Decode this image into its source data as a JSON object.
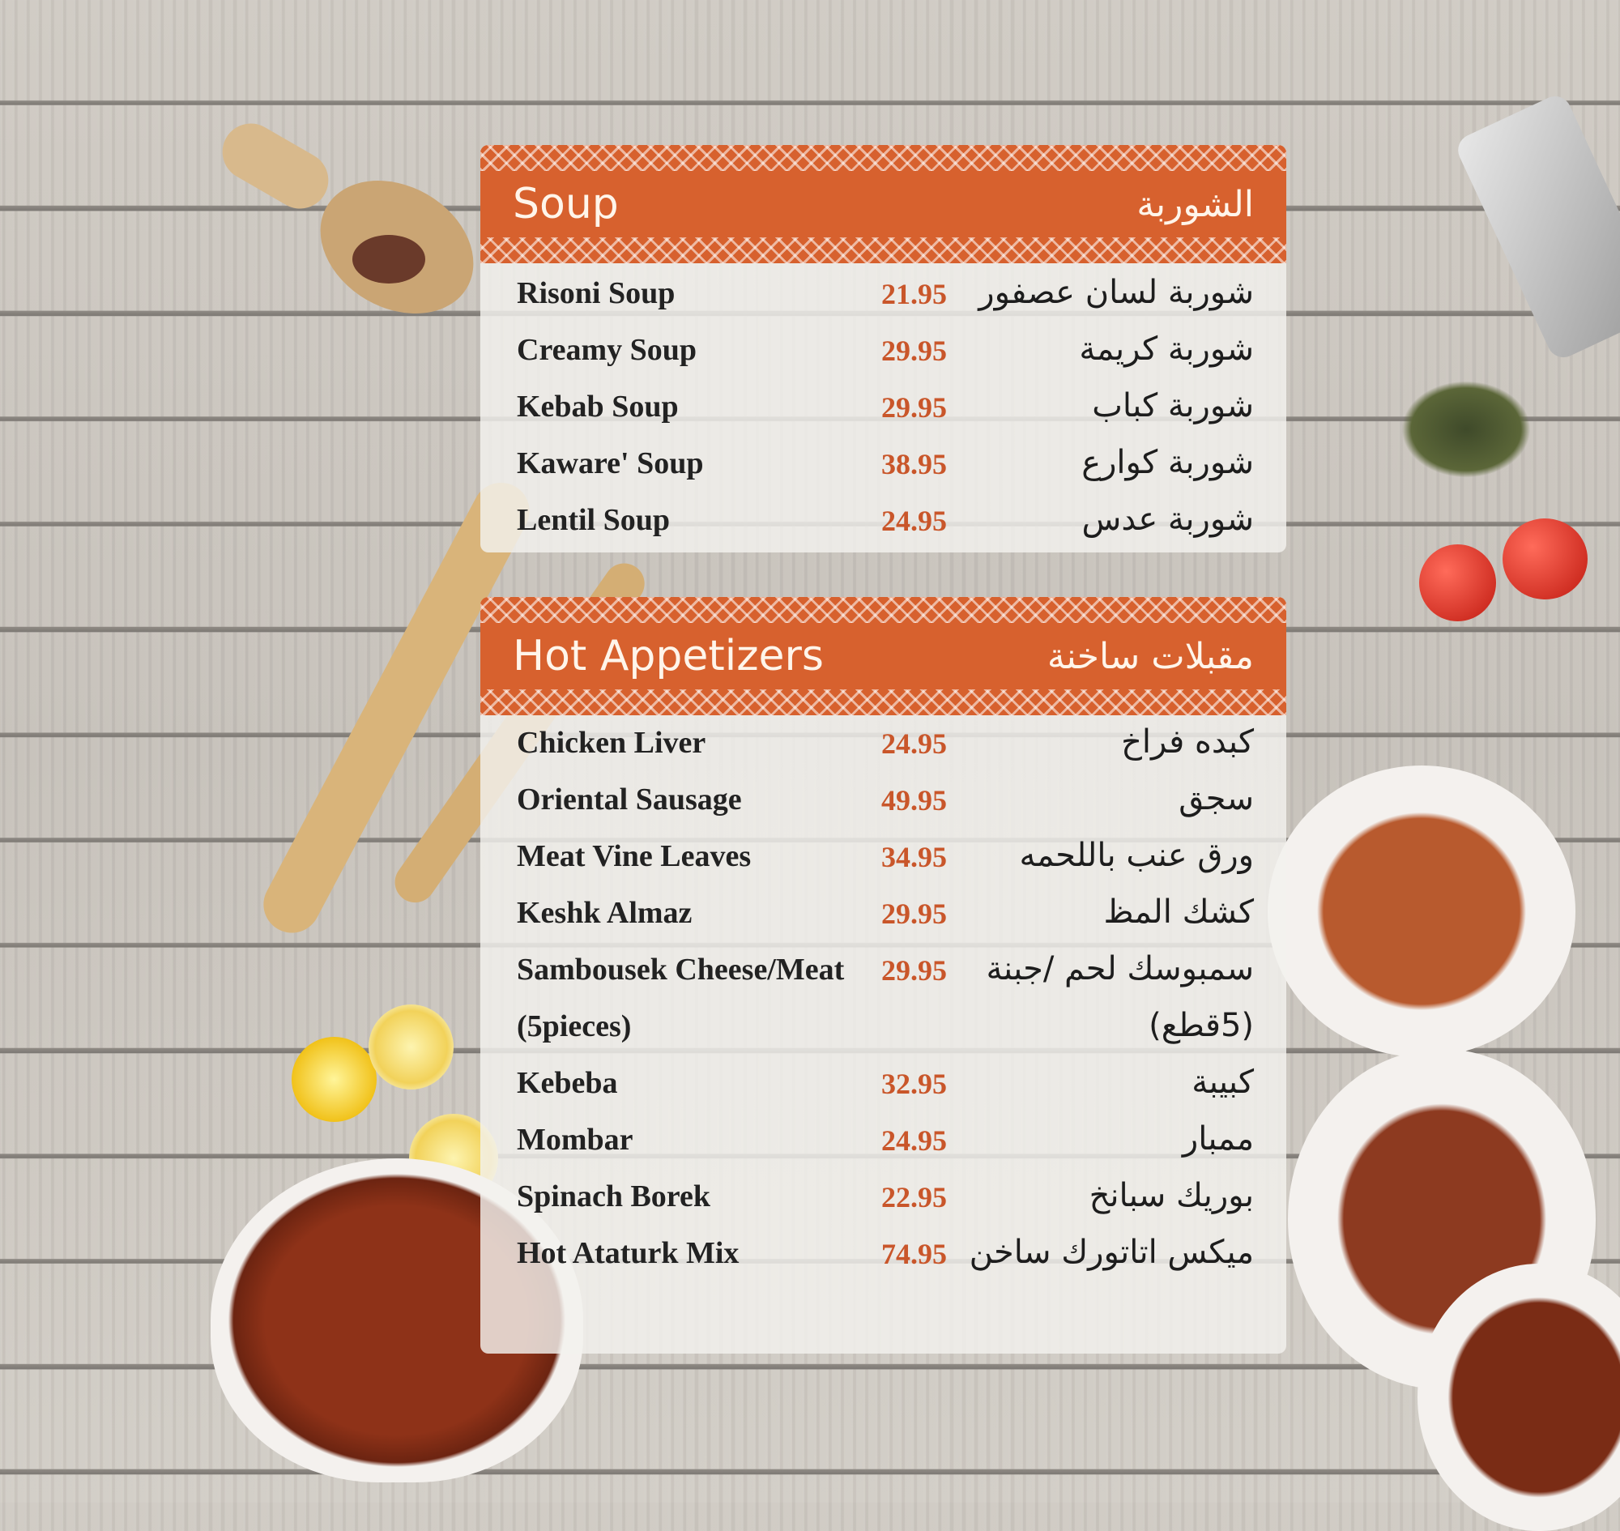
{
  "colors": {
    "accent": "#d7612e",
    "price": "#c9562a"
  },
  "sections": [
    {
      "title_en": "Soup",
      "title_ar": "الشوربة",
      "items": [
        {
          "en": "Risoni Soup",
          "price": "21.95",
          "ar": "شوربة لسان عصفور"
        },
        {
          "en": "Creamy Soup",
          "price": "29.95",
          "ar": "شوربة كريمة"
        },
        {
          "en": "Kebab Soup",
          "price": "29.95",
          "ar": "شوربة كباب"
        },
        {
          "en": "Kaware' Soup",
          "price": "38.95",
          "ar": "شوربة كوارع"
        },
        {
          "en": "Lentil Soup",
          "price": "24.95",
          "ar": "شوربة عدس"
        }
      ]
    },
    {
      "title_en": "Hot Appetizers",
      "title_ar": "مقبلات ساخنة",
      "items": [
        {
          "en": "Chicken Liver",
          "price": "24.95",
          "ar": "كبده فراخ"
        },
        {
          "en": "Oriental Sausage",
          "price": "49.95",
          "ar": "سجق"
        },
        {
          "en": "Meat Vine Leaves",
          "price": "34.95",
          "ar": "ورق عنب باللحمه"
        },
        {
          "en": "Keshk Almaz",
          "price": "29.95",
          "ar": "كشك المظ"
        },
        {
          "en": "Sambousek Cheese/Meat",
          "price": "29.95",
          "ar": "سمبوسك لحم /جبنة"
        },
        {
          "en": "(5pieces)",
          "price": "",
          "ar": "(5قطع)"
        },
        {
          "en": "Kebeba",
          "price": "32.95",
          "ar": "كبيبة"
        },
        {
          "en": "Mombar",
          "price": "24.95",
          "ar": "ممبار"
        },
        {
          "en": "Spinach Borek",
          "price": "22.95",
          "ar": "بوريك سبانخ"
        },
        {
          "en": "Hot Ataturk Mix",
          "price": "74.95",
          "ar": "ميكس اتاتورك ساخن"
        }
      ]
    }
  ]
}
